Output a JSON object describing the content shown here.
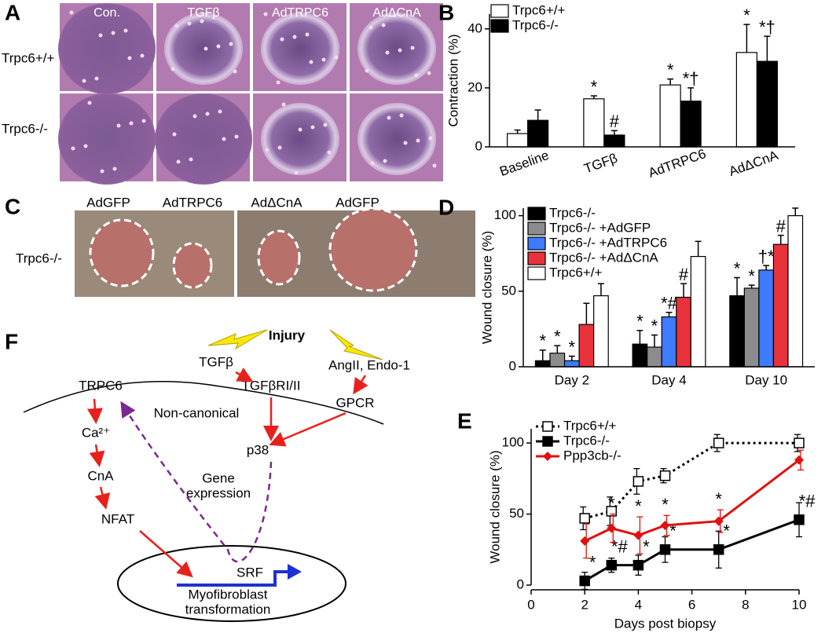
{
  "chart_data": [
    {
      "panel": "B",
      "type": "bar",
      "y_label": "Contraction (%)",
      "categories": [
        "Baseline",
        "TGFβ",
        "AdTRPC6",
        "AdΔCnA"
      ],
      "series": [
        {
          "name": "Trpc6+/+",
          "color": "#ffffff",
          "values": [
            4.5,
            16.3,
            21,
            32
          ],
          "errors": [
            1.2,
            1,
            2,
            9.5
          ],
          "annotations": [
            null,
            "*",
            "*",
            "*"
          ]
        },
        {
          "name": "Trpc6-/-",
          "color": "#000000",
          "values": [
            9,
            4,
            15.5,
            29
          ],
          "errors": [
            3.5,
            1.5,
            4.5,
            8.5
          ],
          "annotations": [
            null,
            "#",
            "*†",
            "*†"
          ]
        }
      ],
      "ylim": [
        0,
        45
      ],
      "yticks": [
        0,
        20,
        40
      ],
      "legend": "upper left"
    },
    {
      "panel": "D",
      "type": "bar",
      "y_label": "Wound closure (%)",
      "categories": [
        "Day 2",
        "Day 4",
        "Day 10"
      ],
      "series": [
        {
          "name": "Trpc6-/-",
          "color": "#000000",
          "values": [
            4,
            15,
            47
          ],
          "errors": [
            7,
            9,
            12
          ],
          "annotations": [
            "*",
            "*",
            "*"
          ]
        },
        {
          "name": "Trpc6-/- +AdGFP",
          "color": "#8c8c8c",
          "values": [
            9,
            13,
            52
          ],
          "errors": [
            5,
            8,
            2
          ],
          "annotations": [
            "*",
            "*",
            "*"
          ]
        },
        {
          "name": "Trpc6-/- +AdTRPC6",
          "color": "#3d7bff",
          "values": [
            4,
            33,
            64
          ],
          "errors": [
            3,
            3,
            3
          ],
          "annotations": [
            "*",
            "*#",
            "†*"
          ]
        },
        {
          "name": "Trpc6-/- +AdΔCnA",
          "color": "#e8323c",
          "values": [
            28,
            46,
            81
          ],
          "errors": [
            14,
            9,
            6
          ],
          "annotations": [
            null,
            "#",
            "#"
          ]
        },
        {
          "name": "Trpc6+/+",
          "color": "#ffffff",
          "values": [
            47,
            73,
            100
          ],
          "errors": [
            8,
            10,
            5
          ],
          "annotations": [
            null,
            null,
            null
          ]
        }
      ],
      "ylim": [
        0,
        105
      ],
      "yticks": [
        0,
        50,
        100
      ],
      "legend": "upper left"
    },
    {
      "panel": "E",
      "type": "line",
      "x_label": "Days post biopsy",
      "y_label": "Wound closure (%)",
      "x": [
        2,
        3,
        4,
        5,
        7,
        10
      ],
      "xlim": [
        0,
        10
      ],
      "xticks": [
        0,
        2,
        4,
        6,
        8,
        10
      ],
      "ylim": [
        0,
        110
      ],
      "yticks": [
        0,
        50,
        100
      ],
      "legend": "upper left",
      "series": [
        {
          "name": "Trpc6+/+",
          "color": "#000000",
          "line_style": "dotted",
          "marker": "open-square",
          "values": [
            47,
            52,
            73,
            77,
            100,
            100
          ],
          "errors": [
            8,
            10,
            9,
            5,
            6,
            6
          ],
          "annotations": [
            null,
            null,
            null,
            null,
            null,
            null
          ]
        },
        {
          "name": "Trpc6-/-",
          "color": "#000000",
          "line_style": "solid",
          "marker": "square",
          "values": [
            3,
            14,
            14,
            25,
            25,
            46
          ],
          "errors": [
            6,
            5,
            7,
            9,
            13,
            12
          ],
          "annotations": [
            "*",
            "*#",
            "*",
            "*",
            "*",
            "*#"
          ]
        },
        {
          "name": "Ppp3cb-/-",
          "color": "#e01010",
          "line_style": "solid",
          "marker": "diamond",
          "values": [
            31,
            40,
            35,
            42,
            45,
            88
          ],
          "errors": [
            12,
            10,
            13,
            7,
            8,
            7
          ],
          "annotations": [
            null,
            "*",
            "*",
            "*",
            "*",
            null
          ]
        }
      ]
    }
  ],
  "panel_a": {
    "letter": "A",
    "columns": [
      "Con.",
      "TGFβ",
      "AdTRPC6",
      "AdΔCnA"
    ],
    "rows": [
      "Trpc6+/+",
      "Trpc6-/-"
    ]
  },
  "panel_c": {
    "letter": "C",
    "labels": [
      "AdGFP",
      "AdTRPC6",
      "AdΔCnA",
      "AdGFP"
    ],
    "row": "Trpc6-/-"
  },
  "panel_f": {
    "letter": "F",
    "nodes": [
      {
        "label": "Injury"
      },
      {
        "label": "TGFβ"
      },
      {
        "label": "AngII, Endo-1"
      },
      {
        "label": "TRPC6"
      },
      {
        "label": "TGFβRI/II"
      },
      {
        "label": "GPCR"
      },
      {
        "label": "Non-canonical"
      },
      {
        "label": "Ca²⁺"
      },
      {
        "label": "p38"
      },
      {
        "label": "CnA"
      },
      {
        "lines": [
          "Gene",
          "expression"
        ]
      },
      {
        "label": "NFAT"
      },
      {
        "label": "SRF"
      },
      {
        "lines": [
          "Myofibroblast",
          "transformation"
        ]
      }
    ]
  }
}
